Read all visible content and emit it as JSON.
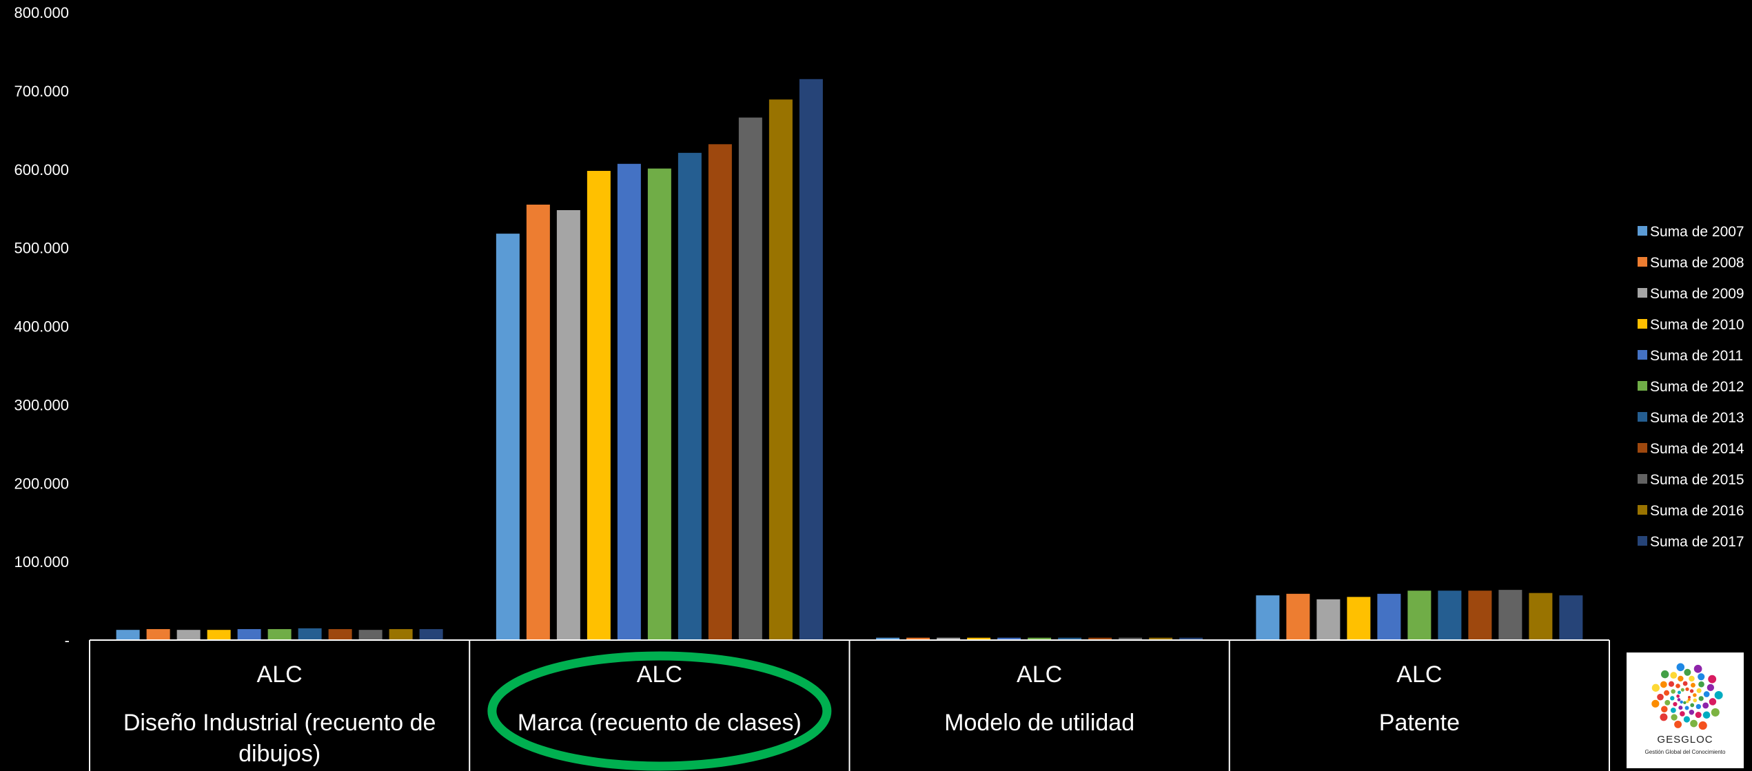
{
  "chart_data": {
    "type": "bar",
    "categories": [
      {
        "level1": "ALC",
        "level2": "Diseño Industrial (recuento de dibujos)",
        "level2_lines": [
          "Diseño Industrial (recuento de",
          "dibujos)"
        ]
      },
      {
        "level1": "ALC",
        "level2": "Marca (recuento de clases)",
        "level2_lines": [
          "Marca (recuento de clases)"
        ]
      },
      {
        "level1": "ALC",
        "level2": "Modelo de utilidad",
        "level2_lines": [
          "Modelo de utilidad"
        ]
      },
      {
        "level1": "ALC",
        "level2": "Patente",
        "level2_lines": [
          "Patente"
        ]
      }
    ],
    "series": [
      {
        "name": "Suma de 2007",
        "color": "#5b9bd5",
        "values": [
          13000,
          518000,
          3000,
          57000
        ]
      },
      {
        "name": "Suma de 2008",
        "color": "#ed7d31",
        "values": [
          14000,
          555000,
          3000,
          59000
        ]
      },
      {
        "name": "Suma de 2009",
        "color": "#a5a5a5",
        "values": [
          13000,
          548000,
          3000,
          52000
        ]
      },
      {
        "name": "Suma de 2010",
        "color": "#ffc000",
        "values": [
          13000,
          598000,
          3000,
          55000
        ]
      },
      {
        "name": "Suma de 2011",
        "color": "#4472c4",
        "values": [
          14000,
          607000,
          3000,
          59000
        ]
      },
      {
        "name": "Suma de 2012",
        "color": "#70ad47",
        "values": [
          14000,
          601000,
          3000,
          63000
        ]
      },
      {
        "name": "Suma de 2013",
        "color": "#255e91",
        "values": [
          15000,
          621000,
          3000,
          63000
        ]
      },
      {
        "name": "Suma de 2014",
        "color": "#9e480e",
        "values": [
          14000,
          632000,
          3000,
          63000
        ]
      },
      {
        "name": "Suma de 2015",
        "color": "#636363",
        "values": [
          13000,
          666000,
          3000,
          64000
        ]
      },
      {
        "name": "Suma de 2016",
        "color": "#997300",
        "values": [
          14000,
          689000,
          3000,
          60000
        ]
      },
      {
        "name": "Suma de 2017",
        "color": "#264478",
        "values": [
          14000,
          715000,
          3000,
          57000
        ]
      }
    ],
    "ylim": [
      0,
      800000
    ],
    "yticks": [
      {
        "value": 800000,
        "label": "800.000"
      },
      {
        "value": 700000,
        "label": "700.000"
      },
      {
        "value": 600000,
        "label": "600.000"
      },
      {
        "value": 500000,
        "label": "500.000"
      },
      {
        "value": 400000,
        "label": "400.000"
      },
      {
        "value": 300000,
        "label": "300.000"
      },
      {
        "value": 200000,
        "label": "200.000"
      },
      {
        "value": 100000,
        "label": "100.000"
      },
      {
        "value": 0,
        "label": "-"
      }
    ],
    "legend_position": "right",
    "highlighted_category": "Marca (recuento de clases)",
    "highlight_color": "#00b050",
    "grid": false
  },
  "logo": {
    "title": "GESGLOC",
    "subtitle": "Gestión Global del Conocimiento"
  }
}
